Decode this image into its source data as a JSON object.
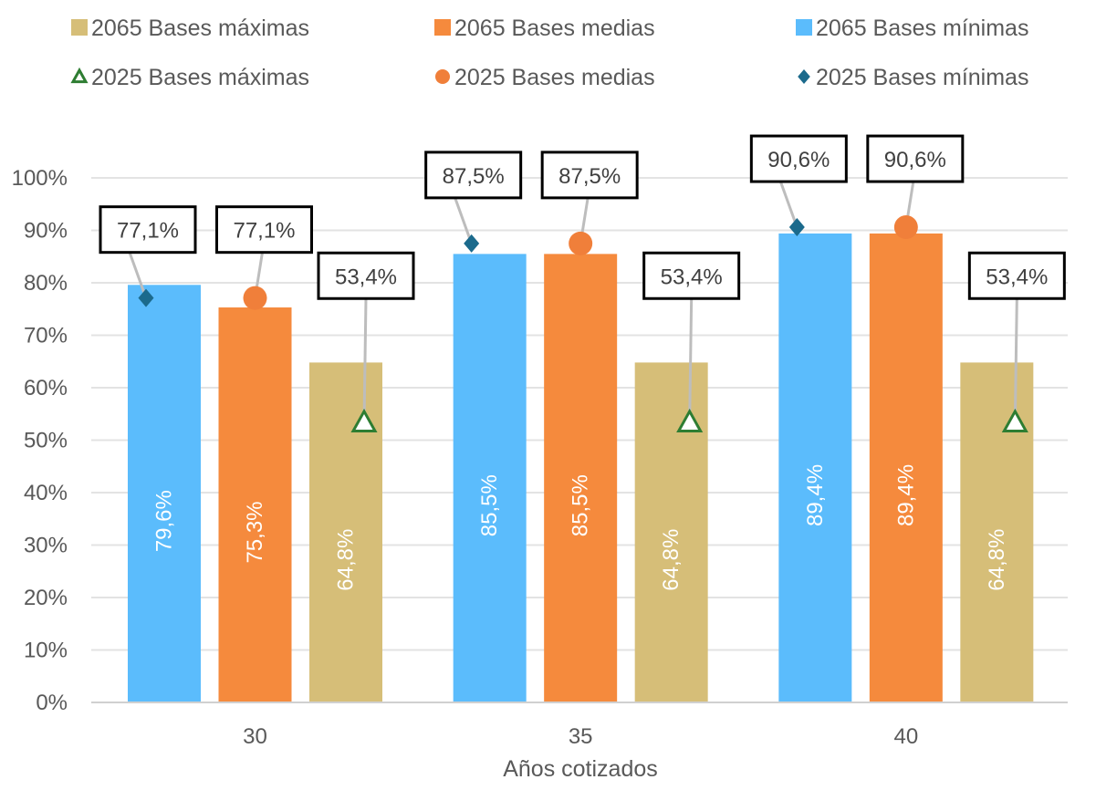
{
  "chart_data": {
    "type": "bar",
    "xlabel": "Años cotizados",
    "ylabel": "",
    "categories": [
      "30",
      "35",
      "40"
    ],
    "ylim": [
      0,
      1.0
    ],
    "yticks": [
      "0%",
      "10%",
      "20%",
      "30%",
      "40%",
      "50%",
      "60%",
      "70%",
      "80%",
      "90%",
      "100%"
    ],
    "grid": true,
    "legend_position": "top",
    "bar_series": [
      {
        "name": "2065 Bases mínimas",
        "color": "#5BBCFC",
        "values": [
          0.796,
          0.855,
          0.894
        ],
        "labels": [
          "79,6%",
          "85,5%",
          "89,4%"
        ]
      },
      {
        "name": "2065 Bases medias",
        "color": "#F58A3D",
        "values": [
          0.753,
          0.855,
          0.894
        ],
        "labels": [
          "75,3%",
          "85,5%",
          "89,4%"
        ]
      },
      {
        "name": "2065 Bases máximas",
        "color": "#D6BE78",
        "values": [
          0.648,
          0.648,
          0.648
        ],
        "labels": [
          "64,8%",
          "64,8%",
          "64,8%"
        ]
      }
    ],
    "marker_series": [
      {
        "name": "2025 Bases mínimas",
        "marker": "diamond",
        "color": "#1B6A8C",
        "values": [
          0.771,
          0.875,
          0.906
        ],
        "labels": [
          "77,1%",
          "87,5%",
          "90,6%"
        ]
      },
      {
        "name": "2025 Bases medias",
        "marker": "circle",
        "color": "#F07F3A",
        "values": [
          0.771,
          0.875,
          0.906
        ],
        "labels": [
          "77,1%",
          "87,5%",
          "90,6%"
        ]
      },
      {
        "name": "2025 Bases máximas",
        "marker": "triangle",
        "color": "#2E7D32",
        "values": [
          0.534,
          0.534,
          0.534
        ],
        "labels": [
          "53,4%",
          "53,4%",
          "53,4%"
        ]
      }
    ],
    "legend": [
      {
        "name": "2065 Bases máximas",
        "symbol": "square",
        "color": "#D6BE78"
      },
      {
        "name": "2065 Bases medias",
        "symbol": "square",
        "color": "#F58A3D"
      },
      {
        "name": "2065 Bases mínimas",
        "symbol": "square",
        "color": "#5BBCFC"
      },
      {
        "name": "2025 Bases máximas",
        "symbol": "triangle",
        "color": "#2E7D32"
      },
      {
        "name": "2025 Bases medias",
        "symbol": "circle",
        "color": "#F07F3A"
      },
      {
        "name": "2025 Bases mínimas",
        "symbol": "diamond",
        "color": "#1B6A8C"
      }
    ]
  }
}
